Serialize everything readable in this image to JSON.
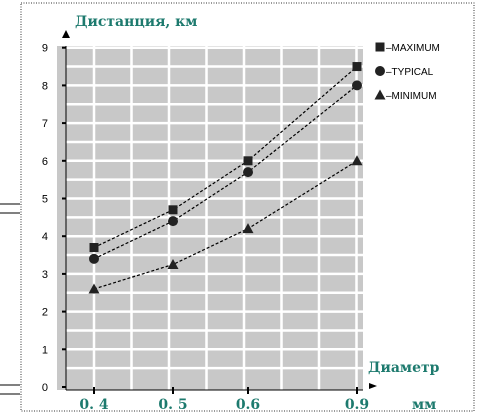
{
  "chart_data": {
    "type": "line",
    "ylabel": "Дистанция, км",
    "xlabel": "Диаметр",
    "xunit": "мм",
    "categories": [
      "0. 4",
      "0. 5",
      "0.6",
      "0.9"
    ],
    "ylim": [
      0,
      9
    ],
    "yticks": [
      "0",
      "1",
      "2",
      "3",
      "4",
      "5",
      "6",
      "7",
      "8",
      "9"
    ],
    "grid": true,
    "legend_position": "top-right",
    "series": [
      {
        "name": "MAXIMUM",
        "marker": "square",
        "values": [
          3.7,
          4.7,
          6.0,
          8.5
        ]
      },
      {
        "name": "TYPICAL",
        "marker": "circle",
        "values": [
          3.4,
          4.4,
          5.7,
          8.0
        ]
      },
      {
        "name": "MINIMUM",
        "marker": "triangle",
        "values": [
          2.6,
          3.25,
          4.2,
          6.0
        ]
      }
    ],
    "legend_prefix": "–",
    "colors": {
      "text_accent": "#1d7a6e",
      "plot_bg": "#c8c8c8",
      "grid": "#ffffff",
      "marker": "#222222"
    }
  }
}
